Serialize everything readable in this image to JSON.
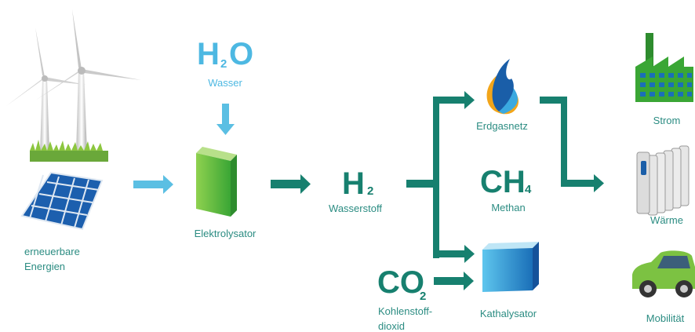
{
  "sources": {
    "label_lines": [
      "erneuerbare",
      "Energien"
    ]
  },
  "water": {
    "formula": [
      "H",
      "2",
      "O"
    ],
    "label": "Wasser"
  },
  "electrolyzer": {
    "label": "Elektrolysator"
  },
  "hydrogen": {
    "formula": [
      "H",
      "2"
    ],
    "label": "Wasserstoff"
  },
  "gas_grid": {
    "label": "Erdgasnetz"
  },
  "methane": {
    "formula": [
      "CH",
      "4"
    ],
    "label": "Methan"
  },
  "co2": {
    "formula": [
      "CO",
      "2"
    ],
    "label_lines": [
      "Kohlenstoff-",
      "dioxid"
    ]
  },
  "catalyst": {
    "label": "Kathalysator"
  },
  "uses": [
    "Strom",
    "Wärme",
    "Mobilität"
  ]
}
